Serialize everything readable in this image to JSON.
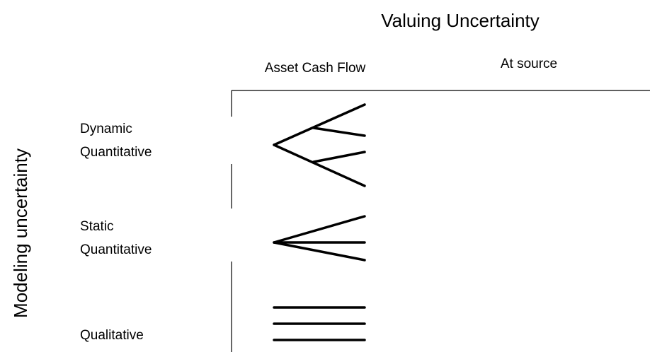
{
  "title": "Valuing Uncertainty",
  "columns": [
    "Asset Cash Flow",
    "At source"
  ],
  "row_axis_label": "Modeling uncertainty",
  "rows": [
    {
      "lines": [
        "Dynamic",
        "Quantitative"
      ]
    },
    {
      "lines": [
        "Static",
        "Quantitative"
      ]
    },
    {
      "lines": [
        "Qualitative"
      ]
    }
  ]
}
